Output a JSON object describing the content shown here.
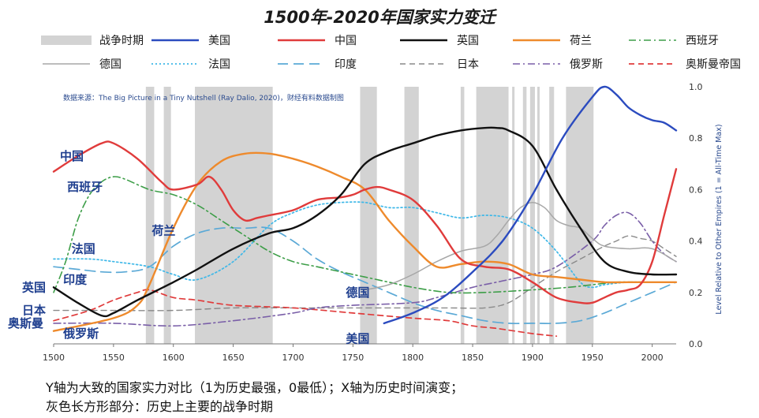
{
  "chart_data": {
    "type": "line",
    "title": "1500年-2020年国家实力变迁",
    "source": "数据来源：The Big Picture in a Tiny Nutshell (Ray Dalio, 2020)，财经有料数据制图",
    "xlabel": "",
    "ylabel": "Level Relative to Other Empires (1 = All-Time Max)",
    "xlim": [
      1500,
      2020
    ],
    "ylim": [
      0,
      1.0
    ],
    "x_ticks": [
      1500,
      1550,
      1600,
      1650,
      1700,
      1750,
      1800,
      1850,
      1900,
      1950,
      2000
    ],
    "y_ticks": [
      0.0,
      0.2,
      0.4,
      0.6,
      0.8,
      1.0
    ],
    "war_label": "战争时期",
    "war_periods": [
      [
        1577,
        1584
      ],
      [
        1592,
        1598
      ],
      [
        1618,
        1683
      ],
      [
        1756,
        1770
      ],
      [
        1793,
        1805
      ],
      [
        1840,
        1843
      ],
      [
        1853,
        1880
      ],
      [
        1883,
        1885
      ],
      [
        1892,
        1895
      ],
      [
        1898,
        1902
      ],
      [
        1904,
        1906
      ],
      [
        1914,
        1918
      ],
      [
        1928,
        1951
      ]
    ],
    "series": [
      {
        "name": "美国",
        "color": "#2b4bbf",
        "dash": "solid",
        "width": 2.4,
        "x": [
          1776,
          1800,
          1825,
          1850,
          1875,
          1900,
          1925,
          1950,
          1960,
          1970,
          1980,
          1990,
          2000,
          2010,
          2020
        ],
        "y": [
          0.08,
          0.12,
          0.18,
          0.28,
          0.4,
          0.58,
          0.8,
          0.96,
          1.0,
          0.97,
          0.92,
          0.89,
          0.87,
          0.86,
          0.83
        ]
      },
      {
        "name": "中国",
        "color": "#e03b3b",
        "dash": "solid",
        "width": 2.4,
        "x": [
          1500,
          1520,
          1540,
          1550,
          1570,
          1590,
          1600,
          1620,
          1630,
          1640,
          1650,
          1660,
          1670,
          1680,
          1700,
          1720,
          1740,
          1750,
          1760,
          1770,
          1780,
          1800,
          1820,
          1840,
          1860,
          1880,
          1900,
          1920,
          1940,
          1950,
          1960,
          1970,
          1980,
          1990,
          2000,
          2010,
          2020
        ],
        "y": [
          0.67,
          0.73,
          0.78,
          0.78,
          0.72,
          0.63,
          0.6,
          0.62,
          0.65,
          0.6,
          0.52,
          0.48,
          0.49,
          0.5,
          0.52,
          0.56,
          0.57,
          0.58,
          0.6,
          0.61,
          0.6,
          0.56,
          0.46,
          0.33,
          0.3,
          0.29,
          0.24,
          0.18,
          0.16,
          0.16,
          0.18,
          0.2,
          0.21,
          0.23,
          0.32,
          0.5,
          0.68
        ]
      },
      {
        "name": "英国",
        "color": "#111111",
        "dash": "solid",
        "width": 2.4,
        "x": [
          1500,
          1520,
          1540,
          1550,
          1570,
          1600,
          1620,
          1650,
          1680,
          1700,
          1720,
          1740,
          1760,
          1780,
          1800,
          1820,
          1840,
          1860,
          1870,
          1880,
          1900,
          1920,
          1940,
          1960,
          1980,
          2000,
          2020
        ],
        "y": [
          0.22,
          0.16,
          0.11,
          0.12,
          0.17,
          0.24,
          0.29,
          0.37,
          0.43,
          0.45,
          0.5,
          0.58,
          0.7,
          0.75,
          0.78,
          0.81,
          0.83,
          0.84,
          0.84,
          0.83,
          0.77,
          0.6,
          0.45,
          0.32,
          0.28,
          0.27,
          0.27
        ]
      },
      {
        "name": "荷兰",
        "color": "#ee8a2c",
        "dash": "solid",
        "width": 2.4,
        "x": [
          1500,
          1550,
          1570,
          1580,
          1600,
          1620,
          1640,
          1660,
          1680,
          1700,
          1720,
          1740,
          1760,
          1780,
          1800,
          1820,
          1840,
          1860,
          1880,
          1900,
          1920,
          1940,
          1960,
          1980,
          2000,
          2020
        ],
        "y": [
          0.05,
          0.1,
          0.15,
          0.23,
          0.45,
          0.62,
          0.71,
          0.74,
          0.74,
          0.72,
          0.69,
          0.65,
          0.6,
          0.48,
          0.38,
          0.3,
          0.31,
          0.32,
          0.31,
          0.27,
          0.26,
          0.25,
          0.24,
          0.24,
          0.24,
          0.24
        ]
      },
      {
        "name": "西班牙",
        "color": "#3d9e48",
        "dash": "dashdot",
        "width": 1.6,
        "x": [
          1500,
          1510,
          1520,
          1530,
          1540,
          1550,
          1560,
          1580,
          1600,
          1620,
          1640,
          1660,
          1680,
          1700,
          1720,
          1750,
          1780,
          1800,
          1830,
          1860,
          1900,
          1930,
          1950,
          1970,
          1990,
          2010,
          2020
        ],
        "y": [
          0.2,
          0.32,
          0.48,
          0.58,
          0.63,
          0.65,
          0.64,
          0.6,
          0.58,
          0.54,
          0.48,
          0.42,
          0.36,
          0.32,
          0.3,
          0.27,
          0.24,
          0.22,
          0.2,
          0.2,
          0.21,
          0.22,
          0.23,
          0.24,
          0.24,
          0.24,
          0.24
        ]
      },
      {
        "name": "德国",
        "color": "#a7a7a7",
        "dash": "solid",
        "width": 1.5,
        "x": [
          1760,
          1780,
          1800,
          1820,
          1840,
          1860,
          1870,
          1880,
          1890,
          1900,
          1910,
          1920,
          1930,
          1940,
          1950,
          1960,
          1980,
          2000,
          2020
        ],
        "y": [
          0.21,
          0.23,
          0.27,
          0.32,
          0.36,
          0.38,
          0.42,
          0.48,
          0.53,
          0.55,
          0.53,
          0.48,
          0.46,
          0.45,
          0.41,
          0.38,
          0.37,
          0.37,
          0.32
        ]
      },
      {
        "name": "法国",
        "color": "#3fb8e8",
        "dash": "dotted",
        "width": 1.7,
        "x": [
          1500,
          1530,
          1550,
          1580,
          1600,
          1620,
          1650,
          1680,
          1700,
          1720,
          1740,
          1760,
          1780,
          1800,
          1820,
          1840,
          1860,
          1880,
          1900,
          1920,
          1940,
          1950,
          1960,
          1980,
          2000,
          2020
        ],
        "y": [
          0.33,
          0.33,
          0.32,
          0.3,
          0.27,
          0.25,
          0.32,
          0.46,
          0.51,
          0.54,
          0.55,
          0.55,
          0.53,
          0.53,
          0.51,
          0.49,
          0.5,
          0.49,
          0.45,
          0.36,
          0.24,
          0.22,
          0.23,
          0.24,
          0.24,
          0.24
        ]
      },
      {
        "name": "印度",
        "color": "#5ba9d6",
        "dash": "longdash",
        "width": 1.7,
        "x": [
          1500,
          1520,
          1540,
          1560,
          1580,
          1600,
          1620,
          1640,
          1660,
          1680,
          1700,
          1720,
          1740,
          1760,
          1780,
          1800,
          1820,
          1840,
          1860,
          1880,
          1900,
          1920,
          1940,
          1960,
          1980,
          2000,
          2020
        ],
        "y": [
          0.3,
          0.29,
          0.28,
          0.28,
          0.3,
          0.38,
          0.43,
          0.45,
          0.45,
          0.45,
          0.4,
          0.33,
          0.28,
          0.24,
          0.2,
          0.16,
          0.13,
          0.11,
          0.09,
          0.08,
          0.08,
          0.08,
          0.09,
          0.12,
          0.16,
          0.2,
          0.24
        ]
      },
      {
        "name": "日本",
        "color": "#8a8a8a",
        "dash": "dashed",
        "width": 1.4,
        "x": [
          1500,
          1550,
          1600,
          1650,
          1700,
          1750,
          1800,
          1830,
          1860,
          1880,
          1900,
          1920,
          1940,
          1960,
          1970,
          1980,
          1990,
          2000,
          2010,
          2020
        ],
        "y": [
          0.13,
          0.13,
          0.13,
          0.14,
          0.14,
          0.14,
          0.14,
          0.14,
          0.14,
          0.16,
          0.22,
          0.28,
          0.33,
          0.38,
          0.4,
          0.42,
          0.41,
          0.4,
          0.37,
          0.34
        ]
      },
      {
        "name": "俄罗斯",
        "color": "#7a5fa8",
        "dash": "dashdot",
        "width": 1.6,
        "x": [
          1500,
          1550,
          1600,
          1650,
          1700,
          1720,
          1750,
          1800,
          1820,
          1850,
          1870,
          1900,
          1920,
          1950,
          1960,
          1970,
          1980,
          1990,
          2000,
          2010,
          2020
        ],
        "y": [
          0.08,
          0.08,
          0.07,
          0.09,
          0.12,
          0.14,
          0.15,
          0.16,
          0.18,
          0.22,
          0.24,
          0.27,
          0.3,
          0.4,
          0.46,
          0.5,
          0.51,
          0.47,
          0.4,
          0.35,
          0.32
        ]
      },
      {
        "name": "奥斯曼帝国",
        "color": "#e03b3b",
        "dash": "dashed",
        "width": 1.7,
        "x": [
          1500,
          1530,
          1550,
          1570,
          1580,
          1600,
          1620,
          1650,
          1700,
          1750,
          1800,
          1830,
          1850,
          1870,
          1900,
          1920
        ],
        "y": [
          0.09,
          0.13,
          0.17,
          0.2,
          0.21,
          0.18,
          0.17,
          0.15,
          0.14,
          0.12,
          0.1,
          0.09,
          0.07,
          0.06,
          0.04,
          0.03
        ]
      }
    ],
    "series_labels": [
      {
        "series": "中国",
        "text": "中国"
      },
      {
        "series": "西班牙",
        "text": "西班牙"
      },
      {
        "series": "荷兰",
        "text": "荷兰"
      },
      {
        "series": "法国",
        "text": "法国"
      },
      {
        "series": "印度",
        "text": "印度"
      },
      {
        "series": "英国",
        "text": "英国"
      },
      {
        "series": "日本",
        "text": "日本"
      },
      {
        "series": "奥斯曼帝国",
        "text": "奥斯曼"
      },
      {
        "series": "俄罗斯",
        "text": "俄罗斯"
      },
      {
        "series": "德国",
        "text": "德国"
      },
      {
        "series": "美国",
        "text": "美国"
      }
    ]
  },
  "notes": {
    "line1": "Y轴为大致的国家实力对比（1为历史最强，0最低）；X轴为历史时间演变；",
    "line2": "灰色长方形部分：历史上主要的战争时期"
  }
}
